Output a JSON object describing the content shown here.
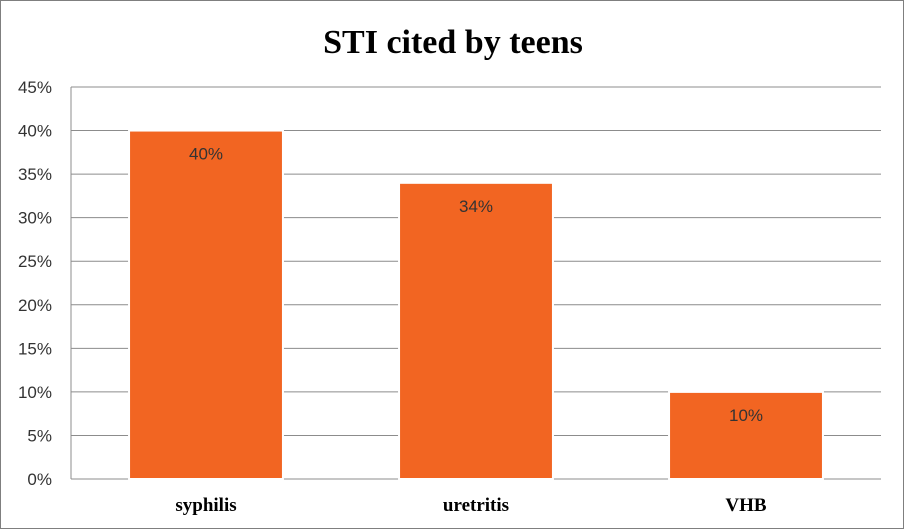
{
  "chart_data": {
    "type": "bar",
    "title": "STI cited by teens",
    "xlabel": "",
    "ylabel": "",
    "categories": [
      "syphilis",
      "uretritis",
      "VHB"
    ],
    "values": [
      40,
      34,
      10
    ],
    "data_labels": [
      "40%",
      "34%",
      "10%"
    ],
    "ylim": [
      0,
      45
    ],
    "ytick_values": [
      0,
      5,
      10,
      15,
      20,
      25,
      30,
      35,
      40,
      45
    ],
    "ytick_labels": [
      "0%",
      "5%",
      "10%",
      "15%",
      "20%",
      "25%",
      "30%",
      "35%",
      "40%",
      "45%"
    ],
    "grid": true,
    "legend": "none",
    "bar_color": "#f26522",
    "bar_edge_color": "#ffffff",
    "grid_color": "#8c8c8c"
  }
}
